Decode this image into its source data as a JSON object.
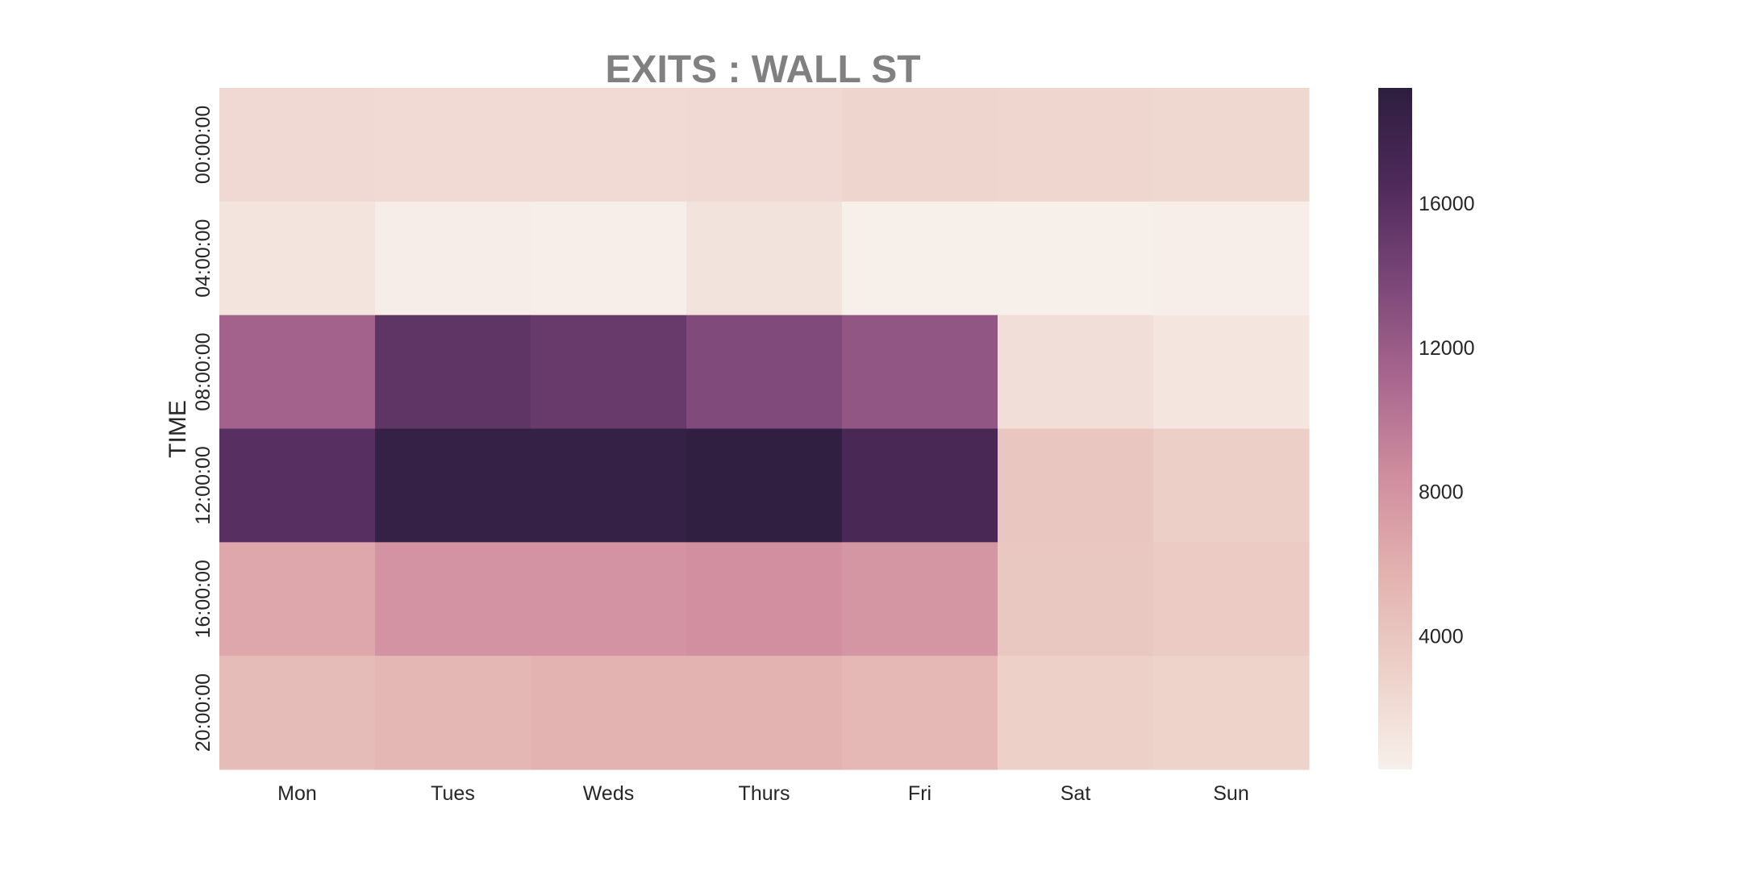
{
  "chart_data": {
    "type": "heatmap",
    "title": "EXITS : WALL ST",
    "xlabel": "",
    "ylabel": "TIME",
    "x_categories": [
      "Mon",
      "Tues",
      "Weds",
      "Thurs",
      "Fri",
      "Sat",
      "Sun"
    ],
    "y_categories": [
      "00:00:00",
      "04:00:00",
      "08:00:00",
      "12:00:00",
      "16:00:00",
      "20:00:00"
    ],
    "values": [
      [
        2300,
        2200,
        2200,
        2300,
        2600,
        2500,
        2400
      ],
      [
        1300,
        500,
        400,
        1400,
        300,
        300,
        400
      ],
      [
        11500,
        15500,
        15000,
        13500,
        12500,
        1800,
        1200
      ],
      [
        16000,
        18500,
        18500,
        19000,
        17000,
        4000,
        3200
      ],
      [
        6500,
        8000,
        8000,
        8300,
        7800,
        3800,
        3500
      ],
      [
        4800,
        5300,
        5600,
        5600,
        5200,
        3000,
        2800
      ]
    ],
    "colorbar": {
      "min": 300,
      "max": 19200,
      "ticks": [
        4000,
        8000,
        12000,
        16000
      ],
      "tick_labels": [
        "4000",
        "8000",
        "12000",
        "16000"
      ]
    },
    "grid": false,
    "colormap_stops": [
      "#f7efea",
      "#edd1c9",
      "#e3b2b0",
      "#d08e9f",
      "#a9678f",
      "#7b4778",
      "#4f2a5b",
      "#2d1e3e"
    ]
  }
}
